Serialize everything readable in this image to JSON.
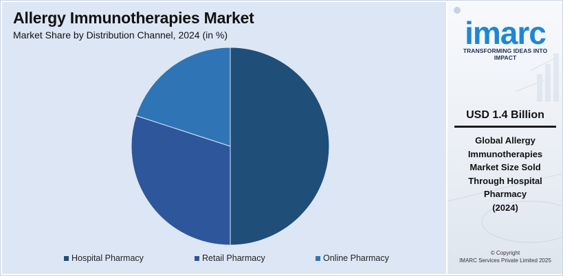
{
  "chart_data": {
    "type": "pie",
    "title": "Allergy Immunotherapies Market",
    "subtitle": "Market Share by Distribution Channel, 2024 (in %)",
    "categories": [
      "Hospital Pharmacy",
      "Retail Pharmacy",
      "Online Pharmacy"
    ],
    "values": [
      50,
      30,
      20
    ],
    "colors": [
      "#1f4e79",
      "#2e569b",
      "#2f75b5"
    ],
    "legend_position": "bottom"
  },
  "sidebar": {
    "logo_text": "imarc",
    "logo_tagline": "TRANSFORMING IDEAS INTO IMPACT",
    "stat_value": "USD 1.4 Billion",
    "stat_desc_lines": [
      "Global Allergy",
      "Immunotherapies",
      "Market Size Sold",
      "Through Hospital",
      "Pharmacy",
      "(2024)"
    ],
    "copyright_line1": "© Copyright",
    "copyright_line2": "IMARC Services Private Limited 2025"
  }
}
